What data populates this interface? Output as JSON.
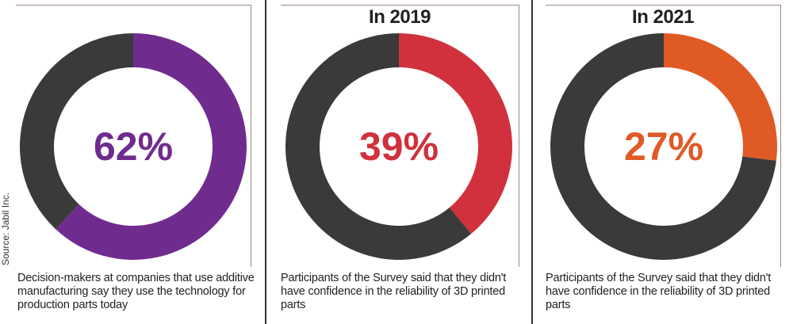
{
  "source": "Source: Jabil Inc.",
  "colors": {
    "remainder": "#3a3a3a",
    "frame": "#9e8a80"
  },
  "panels": [
    {
      "year_label": "",
      "value_label": "62%",
      "color": "#6f2c8e",
      "caption": "Decision-makers at companies that use additive manufacturing say they use the technology for production parts today"
    },
    {
      "year_label": "In 2019",
      "value_label": "39%",
      "color": "#d0313c",
      "caption": "Participants of the Survey said that they didn't have confidence in the reliability of 3D printed parts"
    },
    {
      "year_label": "In 2021",
      "value_label": "27%",
      "color": "#e05a26",
      "caption": "Participants of the Survey said that they didn't have confidence in the reliability of 3D printed parts"
    }
  ],
  "chart_data": [
    {
      "type": "pie",
      "categories": [
        "",
        ""
      ],
      "values": [
        62,
        38
      ],
      "title": ""
    },
    {
      "type": "pie",
      "categories": [
        "",
        ""
      ],
      "values": [
        39,
        61
      ],
      "title": "In 2019"
    },
    {
      "type": "pie",
      "categories": [
        "",
        ""
      ],
      "values": [
        27,
        73
      ],
      "title": "In 2021"
    }
  ]
}
